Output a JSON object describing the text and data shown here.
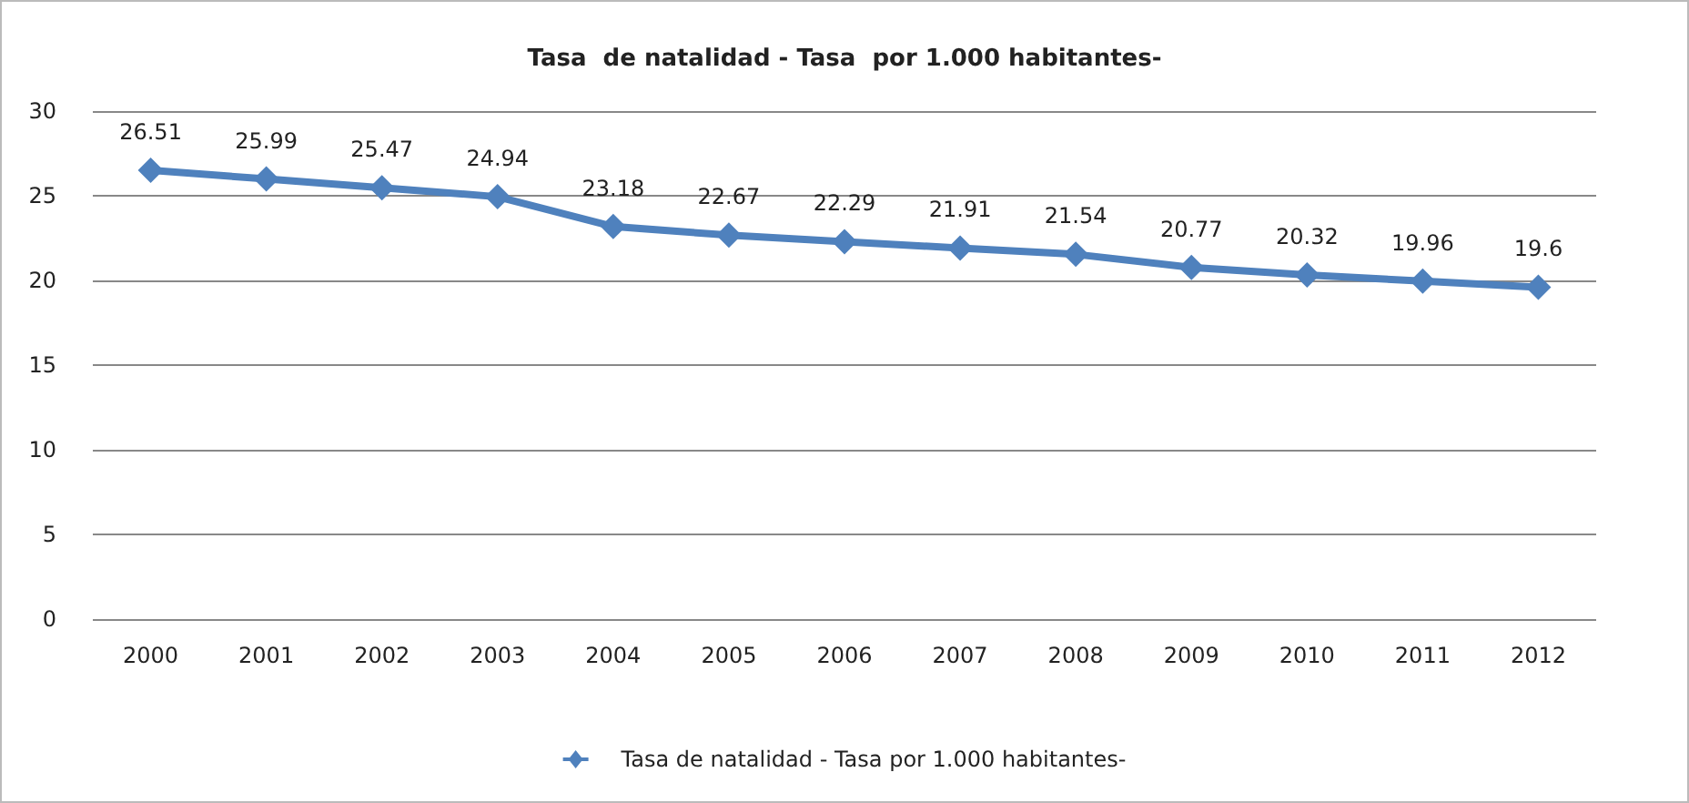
{
  "chart_data": {
    "type": "line",
    "title": "Tasa  de natalidad - Tasa  por 1.000 habitantes-",
    "categories": [
      "2000",
      "2001",
      "2002",
      "2003",
      "2004",
      "2005",
      "2006",
      "2007",
      "2008",
      "2009",
      "2010",
      "2011",
      "2012"
    ],
    "series": [
      {
        "name": "Tasa de natalidad - Tasa por 1.000 habitantes-",
        "color": "#4f81bd",
        "values": [
          26.51,
          25.99,
          25.47,
          24.94,
          23.18,
          22.67,
          22.29,
          21.91,
          21.54,
          20.77,
          20.32,
          19.96,
          19.6
        ]
      }
    ],
    "ylim": [
      0,
      30
    ],
    "yticks": [
      0,
      5,
      10,
      15,
      20,
      25,
      30
    ],
    "grid": "y",
    "legend": "bottom",
    "marker": "diamond",
    "line_style": "solid",
    "data_labels": true
  }
}
